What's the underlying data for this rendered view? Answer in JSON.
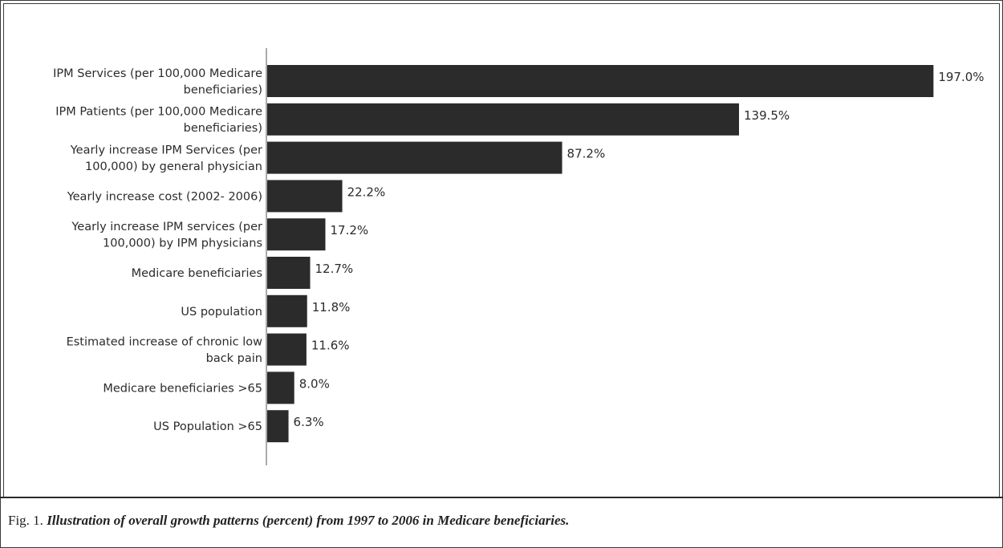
{
  "chart_data": {
    "type": "bar",
    "orientation": "horizontal",
    "categories": [
      [
        "IPM Services (per 100,000 Medicare",
        "beneficiaries)"
      ],
      [
        "IPM Patients (per 100,000 Medicare",
        "beneficiaries)"
      ],
      [
        "Yearly increase IPM Services (per",
        "100,000) by general physician"
      ],
      [
        "Yearly increase cost (2002- 2006)"
      ],
      [
        "Yearly increase IPM services (per",
        "100,000) by IPM physicians"
      ],
      [
        "Medicare beneficiaries"
      ],
      [
        "US population"
      ],
      [
        "Estimated increase of  chronic low",
        "back pain"
      ],
      [
        "Medicare beneficiaries >65"
      ],
      [
        "US Population  >65"
      ]
    ],
    "values": [
      197.0,
      139.5,
      87.2,
      22.2,
      17.2,
      12.7,
      11.8,
      11.6,
      8.0,
      6.3
    ],
    "value_labels": [
      "197.0%",
      "139.5%",
      "87.2%",
      "22.2%",
      "17.2%",
      "12.7%",
      "11.8%",
      "11.6%",
      "8.0%",
      "6.3%"
    ],
    "xlim": [
      0,
      200
    ],
    "grid": false,
    "legend": "none",
    "bar_color": "#2b2b2b"
  },
  "caption": {
    "fig_label": "Fig. 1.",
    "text": "Illustration of overall growth patterns (percent) from 1997 to 2006 in Medicare beneficiaries."
  }
}
